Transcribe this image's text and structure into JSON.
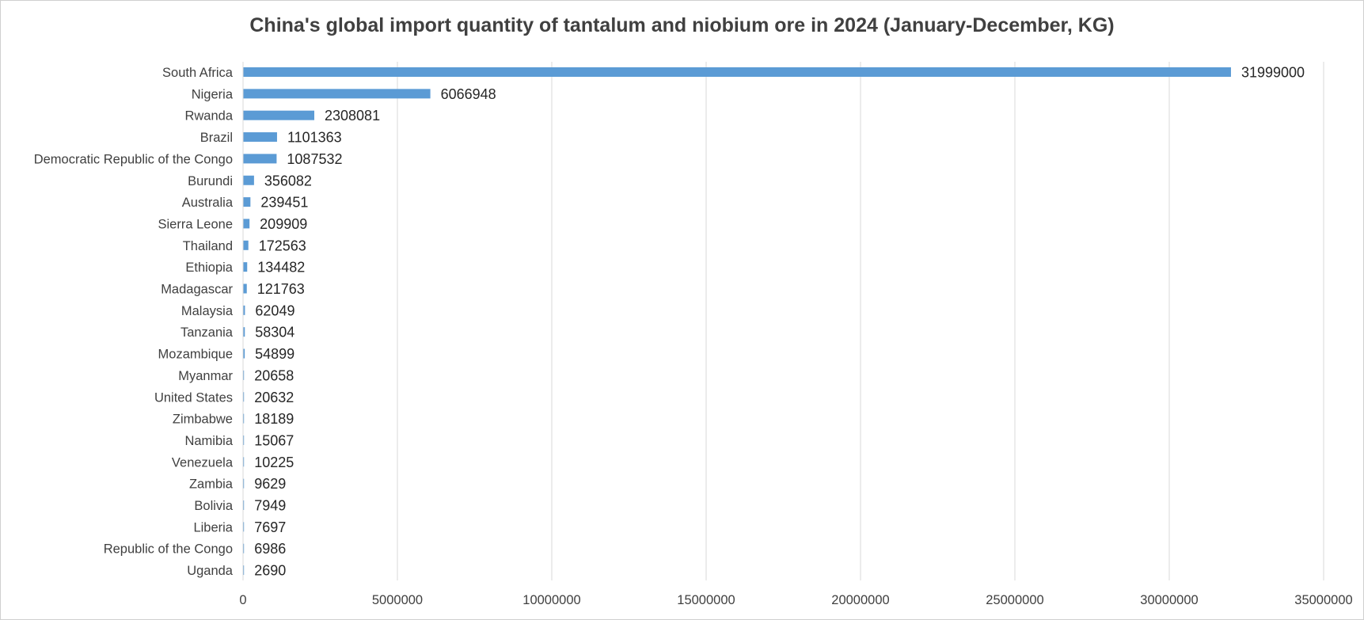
{
  "chart_data": {
    "type": "bar",
    "orientation": "horizontal",
    "title": "China's global import quantity of tantalum and niobium ore in 2024 (January-December, KG)",
    "xlabel": "",
    "ylabel": "",
    "xlim": [
      0,
      35000000
    ],
    "x_ticks": [
      "0",
      "5000000",
      "10000000",
      "15000000",
      "20000000",
      "25000000",
      "30000000",
      "35000000"
    ],
    "grid": "vertical",
    "legend": "none",
    "bar_color": "#5B9BD5",
    "categories": [
      "South Africa",
      "Nigeria",
      "Rwanda",
      "Brazil",
      "Democratic Republic of the Congo",
      "Burundi",
      "Australia",
      "Sierra Leone",
      "Thailand",
      "Ethiopia",
      "Madagascar",
      "Malaysia",
      "Tanzania",
      "Mozambique",
      "Myanmar",
      "United States",
      "Zimbabwe",
      "Namibia",
      "Venezuela",
      "Zambia",
      "Bolivia",
      "Liberia",
      "Republic of the Congo",
      "Uganda"
    ],
    "values": [
      31999000,
      6066948,
      2308081,
      1101363,
      1087532,
      356082,
      239451,
      209909,
      172563,
      134482,
      121763,
      62049,
      58304,
      54899,
      20658,
      20632,
      18189,
      15067,
      10225,
      9629,
      7949,
      7697,
      6986,
      2690
    ]
  }
}
